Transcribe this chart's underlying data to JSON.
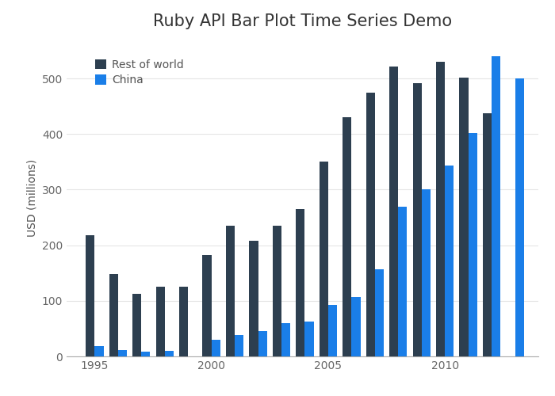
{
  "title": "Ruby API Bar Plot Time Series Demo",
  "ylabel": "USD (millions)",
  "years": [
    1995,
    1996,
    1997,
    1998,
    1999,
    2000,
    2001,
    2002,
    2003,
    2004,
    2005,
    2006,
    2007,
    2008,
    2009,
    2010,
    2011,
    2012,
    2013
  ],
  "rest_of_world": [
    218,
    148,
    112,
    126,
    125,
    182,
    235,
    208,
    235,
    265,
    350,
    430,
    475,
    522,
    492,
    530,
    502,
    438,
    0
  ],
  "china": [
    18,
    12,
    8,
    10,
    0,
    30,
    38,
    45,
    60,
    62,
    93,
    107,
    157,
    270,
    300,
    343,
    402,
    540,
    500
  ],
  "color_rest": "#2d3f50",
  "color_china": "#1a7ee8",
  "background_color": "#ffffff",
  "legend_labels": [
    "Rest of world",
    "China"
  ],
  "ylim": [
    0,
    570
  ],
  "yticks": [
    0,
    100,
    200,
    300,
    400,
    500
  ],
  "xticks": [
    1995,
    2000,
    2005,
    2010
  ],
  "grid_color": "#e5e5e5",
  "title_fontsize": 15,
  "label_fontsize": 10,
  "tick_fontsize": 10
}
